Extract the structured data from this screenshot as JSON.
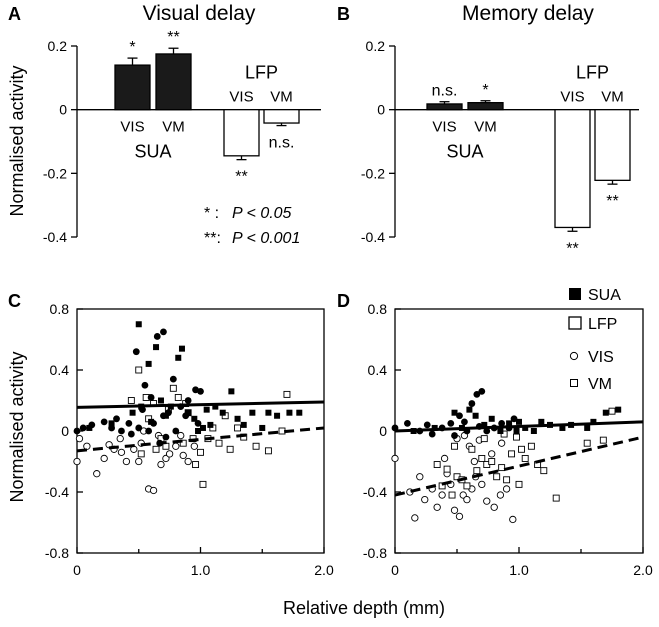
{
  "ylabel": "Normalised activity",
  "xlabel": "Relative depth (mm)",
  "legend": {
    "sua": "SUA",
    "lfp": "LFP",
    "vis": "VIS",
    "vm": "VM"
  },
  "significance_note": [
    {
      "mark": "* :",
      "text": "P < 0.05"
    },
    {
      "mark": "**:",
      "text": "P < 0.001"
    }
  ],
  "chart_data": [
    {
      "panel": "A",
      "type": "bar",
      "title": "Visual delay",
      "ylim": [
        -0.4,
        0.2
      ],
      "yticks": [
        "0.2",
        "0",
        "-0.2",
        "-0.4"
      ],
      "groups": [
        {
          "name": "SUA",
          "bars": [
            {
              "label": "VIS",
              "value": 0.14,
              "err": 0.022,
              "sig": "*",
              "fill": "#1a1a1a"
            },
            {
              "label": "VM",
              "value": 0.175,
              "err": 0.018,
              "sig": "**",
              "fill": "#1a1a1a"
            }
          ]
        },
        {
          "name": "LFP",
          "bars": [
            {
              "label": "VIS",
              "value": -0.145,
              "err": 0.012,
              "sig": "**",
              "fill": "#ffffff"
            },
            {
              "label": "VM",
              "value": -0.042,
              "err": 0.008,
              "sig": "n.s.",
              "fill": "#ffffff"
            }
          ]
        }
      ]
    },
    {
      "panel": "B",
      "type": "bar",
      "title": "Memory delay",
      "ylim": [
        -0.4,
        0.2
      ],
      "yticks": [
        "0.2",
        "0",
        "-0.2",
        "-0.4"
      ],
      "groups": [
        {
          "name": "SUA",
          "bars": [
            {
              "label": "VIS",
              "value": 0.018,
              "err": 0.007,
              "sig": "n.s.",
              "fill": "#1a1a1a"
            },
            {
              "label": "VM",
              "value": 0.022,
              "err": 0.006,
              "sig": "*",
              "fill": "#1a1a1a"
            }
          ]
        },
        {
          "name": "LFP",
          "bars": [
            {
              "label": "VIS",
              "value": -0.37,
              "err": 0.012,
              "sig": "**",
              "fill": "#ffffff"
            },
            {
              "label": "VM",
              "value": -0.222,
              "err": 0.012,
              "sig": "**",
              "fill": "#ffffff"
            }
          ]
        }
      ]
    },
    {
      "panel": "C",
      "type": "scatter",
      "xlim": [
        0,
        2
      ],
      "ylim": [
        -0.8,
        0.8
      ],
      "xticks": [
        "0",
        "1.0",
        "2.0"
      ],
      "yticks": [
        "0.8",
        "0.4",
        "0",
        "-0.4",
        "-0.8"
      ],
      "series": [
        {
          "signal": "SUA",
          "task": "VIS",
          "marker": "circle-filled",
          "points": [
            [
              0,
              0
            ],
            [
              0.05,
              0.02
            ],
            [
              0.12,
              0.04
            ],
            [
              0.22,
              0.06
            ],
            [
              0.32,
              0.08
            ],
            [
              0.42,
              0.05
            ],
            [
              0.48,
              0.52
            ],
            [
              0.55,
              0.3
            ],
            [
              0.6,
              0.22
            ],
            [
              0.65,
              0.62
            ],
            [
              0.7,
              0.65
            ],
            [
              0.74,
              0.12
            ],
            [
              0.78,
              0.34
            ],
            [
              0.84,
              0.16
            ],
            [
              0.9,
              0.2
            ],
            [
              0.96,
              0.27
            ],
            [
              0.5,
              0.02
            ],
            [
              0.58,
              0.0
            ],
            [
              0.67,
              -0.08
            ],
            [
              0.8,
              0.0
            ],
            [
              0.88,
              0.1
            ],
            [
              0.44,
              -0.02
            ],
            [
              0.36,
              0.0
            ],
            [
              0.62,
              0.05
            ],
            [
              0.98,
              0.05
            ],
            [
              0.72,
              -0.04
            ],
            [
              0.28,
              0.02
            ],
            [
              1.0,
              0.26
            ],
            [
              0.53,
              0.14
            ],
            [
              0.7,
              0.1
            ]
          ]
        },
        {
          "signal": "SUA",
          "task": "VM",
          "marker": "square-filled",
          "points": [
            [
              0.1,
              0.02
            ],
            [
              0.28,
              0.05
            ],
            [
              0.45,
              0.12
            ],
            [
              0.5,
              0.7
            ],
            [
              0.58,
              0.44
            ],
            [
              0.64,
              0.55
            ],
            [
              0.68,
              0.2
            ],
            [
              0.72,
              0.1
            ],
            [
              0.82,
              0.48
            ],
            [
              0.85,
              0.54
            ],
            [
              0.9,
              0.12
            ],
            [
              0.95,
              0.08
            ],
            [
              1.02,
              0.02
            ],
            [
              1.05,
              0.14
            ],
            [
              1.12,
              0.16
            ],
            [
              1.18,
              0.12
            ],
            [
              1.25,
              0.26
            ],
            [
              1.3,
              0.08
            ],
            [
              1.42,
              0.12
            ],
            [
              1.5,
              0.02
            ],
            [
              1.55,
              0.12
            ],
            [
              1.62,
              0.1
            ],
            [
              1.72,
              0.12
            ],
            [
              1.8,
              0.12
            ],
            [
              0.6,
              0.06
            ],
            [
              0.76,
              0.16
            ],
            [
              0.98,
              0.0
            ],
            [
              1.35,
              0.04
            ],
            [
              0.52,
              0.16
            ],
            [
              1.08,
              0.04
            ]
          ]
        },
        {
          "signal": "LFP",
          "task": "VIS",
          "marker": "circle-open",
          "points": [
            [
              0,
              -0.2
            ],
            [
              0.02,
              -0.05
            ],
            [
              0.08,
              -0.1
            ],
            [
              0.16,
              -0.28
            ],
            [
              0.22,
              -0.18
            ],
            [
              0.3,
              -0.12
            ],
            [
              0.35,
              -0.05
            ],
            [
              0.4,
              -0.2
            ],
            [
              0.46,
              -0.12
            ],
            [
              0.52,
              -0.08
            ],
            [
              0.58,
              -0.38
            ],
            [
              0.62,
              -0.39
            ],
            [
              0.68,
              -0.22
            ],
            [
              0.72,
              -0.18
            ],
            [
              0.75,
              -0.15
            ],
            [
              0.8,
              -0.1
            ],
            [
              0.86,
              -0.16
            ],
            [
              0.9,
              -0.2
            ],
            [
              0.95,
              -0.1
            ],
            [
              0.36,
              -0.14
            ],
            [
              0.5,
              -0.2
            ],
            [
              0.66,
              -0.03
            ],
            [
              0.26,
              -0.09
            ],
            [
              0.84,
              -0.03
            ],
            [
              0.54,
              0.0
            ]
          ]
        },
        {
          "signal": "LFP",
          "task": "VM",
          "marker": "square-open",
          "points": [
            [
              0.44,
              0.2
            ],
            [
              0.5,
              0.4
            ],
            [
              0.52,
              -0.15
            ],
            [
              0.58,
              0.08
            ],
            [
              0.62,
              0.18
            ],
            [
              0.68,
              -0.05
            ],
            [
              0.72,
              -0.1
            ],
            [
              0.78,
              0.28
            ],
            [
              0.82,
              0.22
            ],
            [
              0.86,
              -0.08
            ],
            [
              0.9,
              0.12
            ],
            [
              0.96,
              -0.22
            ],
            [
              1.0,
              -0.14
            ],
            [
              1.02,
              -0.35
            ],
            [
              1.06,
              -0.05
            ],
            [
              1.1,
              0.02
            ],
            [
              1.15,
              -0.08
            ],
            [
              1.2,
              0.1
            ],
            [
              1.24,
              -0.12
            ],
            [
              1.3,
              0.02
            ],
            [
              1.45,
              -0.1
            ],
            [
              1.55,
              -0.13
            ],
            [
              1.66,
              0.0
            ],
            [
              1.7,
              0.24
            ],
            [
              0.56,
              0.22
            ],
            [
              0.74,
              0.14
            ],
            [
              0.94,
              -0.05
            ],
            [
              1.35,
              -0.04
            ],
            [
              0.88,
              0.18
            ],
            [
              0.64,
              -0.12
            ]
          ]
        }
      ],
      "fits": [
        {
          "signal": "SUA",
          "style": "solid",
          "x": [
            0,
            2
          ],
          "y": [
            0.155,
            0.19
          ]
        },
        {
          "signal": "LFP",
          "style": "dashed",
          "x": [
            0,
            2
          ],
          "y": [
            -0.13,
            0.02
          ]
        }
      ]
    },
    {
      "panel": "D",
      "type": "scatter",
      "xlim": [
        0,
        2
      ],
      "ylim": [
        -0.8,
        0.8
      ],
      "xticks": [
        "0",
        "1.0",
        "2.0"
      ],
      "yticks": [
        "0.8",
        "0.4",
        "0",
        "-0.4",
        "-0.8"
      ],
      "series": [
        {
          "signal": "SUA",
          "task": "VIS",
          "marker": "circle-filled",
          "points": [
            [
              0,
              0.02
            ],
            [
              0.1,
              0.05
            ],
            [
              0.2,
              0.0
            ],
            [
              0.3,
              -0.02
            ],
            [
              0.38,
              0.02
            ],
            [
              0.45,
              0.05
            ],
            [
              0.52,
              0.1
            ],
            [
              0.58,
              0.0
            ],
            [
              0.62,
              0.18
            ],
            [
              0.66,
              0.24
            ],
            [
              0.7,
              0.26
            ],
            [
              0.74,
              0.0
            ],
            [
              0.8,
              0.02
            ],
            [
              0.86,
              0.05
            ],
            [
              0.92,
              0.02
            ],
            [
              0.26,
              0.04
            ],
            [
              0.48,
              -0.03
            ],
            [
              0.56,
              0.06
            ],
            [
              0.68,
              0.03
            ],
            [
              0.96,
              0.08
            ]
          ]
        },
        {
          "signal": "SUA",
          "task": "VM",
          "marker": "square-filled",
          "points": [
            [
              0.15,
              0.0
            ],
            [
              0.32,
              0.02
            ],
            [
              0.48,
              0.12
            ],
            [
              0.6,
              0.14
            ],
            [
              0.65,
              0.1
            ],
            [
              0.72,
              0.04
            ],
            [
              0.78,
              0.08
            ],
            [
              0.85,
              0.0
            ],
            [
              0.92,
              0.05
            ],
            [
              1.0,
              0.06
            ],
            [
              1.05,
              0.02
            ],
            [
              1.12,
              0.0
            ],
            [
              1.18,
              0.06
            ],
            [
              1.25,
              0.04
            ],
            [
              1.35,
              0.02
            ],
            [
              1.42,
              0.04
            ],
            [
              1.55,
              0.02
            ],
            [
              1.6,
              0.06
            ],
            [
              1.7,
              0.12
            ],
            [
              1.8,
              0.14
            ],
            [
              0.54,
              0.02
            ],
            [
              0.98,
              0.0
            ]
          ]
        },
        {
          "signal": "LFP",
          "task": "VIS",
          "marker": "circle-open",
          "points": [
            [
              0,
              -0.18
            ],
            [
              0.12,
              -0.4
            ],
            [
              0.16,
              -0.57
            ],
            [
              0.2,
              -0.3
            ],
            [
              0.24,
              -0.45
            ],
            [
              0.3,
              -0.38
            ],
            [
              0.34,
              -0.5
            ],
            [
              0.38,
              -0.42
            ],
            [
              0.42,
              -0.28
            ],
            [
              0.45,
              -0.35
            ],
            [
              0.48,
              -0.52
            ],
            [
              0.52,
              -0.56
            ],
            [
              0.55,
              -0.42
            ],
            [
              0.58,
              -0.45
            ],
            [
              0.62,
              -0.38
            ],
            [
              0.65,
              -0.3
            ],
            [
              0.7,
              -0.35
            ],
            [
              0.74,
              -0.46
            ],
            [
              0.8,
              -0.5
            ],
            [
              0.85,
              -0.42
            ],
            [
              0.9,
              -0.38
            ],
            [
              0.95,
              -0.58
            ],
            [
              0.5,
              -0.05
            ],
            [
              0.56,
              -0.03
            ],
            [
              0.6,
              -0.1
            ],
            [
              0.68,
              -0.06
            ],
            [
              0.78,
              -0.15
            ],
            [
              0.86,
              -0.08
            ],
            [
              0.4,
              -0.18
            ],
            [
              0.64,
              -0.2
            ]
          ]
        },
        {
          "signal": "LFP",
          "task": "VM",
          "marker": "square-open",
          "points": [
            [
              0.34,
              -0.22
            ],
            [
              0.38,
              -0.36
            ],
            [
              0.42,
              -0.25
            ],
            [
              0.46,
              -0.42
            ],
            [
              0.5,
              -0.3
            ],
            [
              0.54,
              -0.32
            ],
            [
              0.58,
              -0.36
            ],
            [
              0.62,
              -0.12
            ],
            [
              0.66,
              -0.26
            ],
            [
              0.7,
              -0.18
            ],
            [
              0.74,
              -0.22
            ],
            [
              0.78,
              -0.2
            ],
            [
              0.82,
              -0.3
            ],
            [
              0.86,
              -0.24
            ],
            [
              0.9,
              -0.32
            ],
            [
              0.94,
              -0.15
            ],
            [
              1.0,
              -0.35
            ],
            [
              1.05,
              -0.18
            ],
            [
              1.1,
              -0.1
            ],
            [
              1.15,
              -0.22
            ],
            [
              1.2,
              -0.26
            ],
            [
              1.3,
              -0.44
            ],
            [
              1.55,
              -0.08
            ],
            [
              1.68,
              -0.06
            ],
            [
              1.75,
              0.13
            ],
            [
              0.72,
              -0.05
            ],
            [
              0.98,
              -0.04
            ],
            [
              0.88,
              -0.02
            ],
            [
              1.02,
              -0.12
            ],
            [
              0.48,
              -0.1
            ]
          ]
        }
      ],
      "fits": [
        {
          "signal": "SUA",
          "style": "solid",
          "x": [
            0,
            2
          ],
          "y": [
            0.0,
            0.06
          ]
        },
        {
          "signal": "LFP",
          "style": "dashed",
          "x": [
            0,
            2
          ],
          "y": [
            -0.42,
            -0.04
          ]
        }
      ]
    }
  ]
}
